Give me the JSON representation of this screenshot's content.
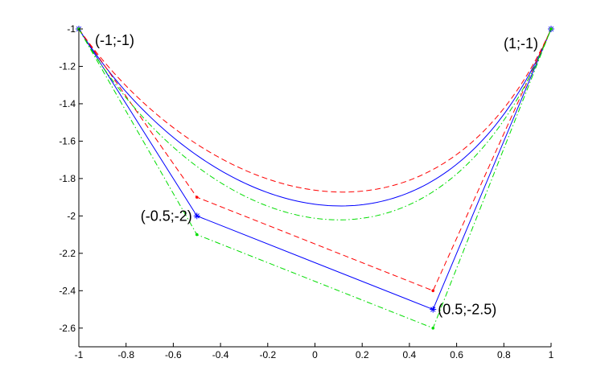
{
  "chart_data": {
    "type": "line",
    "title": "",
    "xlabel": "",
    "ylabel": "",
    "xlim": [
      -1,
      1
    ],
    "ylim": [
      -2.7,
      -1
    ],
    "grid": false,
    "legend": "none",
    "xticks": [
      -1,
      -0.8,
      -0.6,
      -0.4,
      -0.2,
      0,
      0.2,
      0.4,
      0.6,
      0.8,
      1
    ],
    "xtick_labels": [
      "-1",
      "-0.8",
      "-0.6",
      "-0.4",
      "-0.2",
      "0",
      "0.2",
      "0.4",
      "0.6",
      "0.8",
      "1"
    ],
    "yticks": [
      -1,
      -1.2,
      -1.4,
      -1.6,
      -1.8,
      -2,
      -2.2,
      -2.4,
      -2.6
    ],
    "ytick_labels": [
      "-1",
      "-1.2",
      "-1.4",
      "-1.6",
      "-1.8",
      "-2",
      "-2.2",
      "-2.4",
      "-2.6"
    ],
    "series": [
      {
        "kind": "control-polygon",
        "color": "#0000ff",
        "style": "solid",
        "marker": "star",
        "x": [
          -1,
          -0.5,
          0.5,
          1
        ],
        "y": [
          -1,
          -2,
          -2.5,
          -1
        ]
      },
      {
        "kind": "bezier-curve",
        "color": "#0000ff",
        "style": "solid",
        "marker": "none",
        "control_x": [
          -1,
          -0.5,
          0.5,
          1
        ],
        "control_y": [
          -1,
          -2,
          -2.5,
          -1
        ]
      },
      {
        "kind": "control-polygon",
        "color": "#ff0000",
        "style": "dashed",
        "marker": "dot",
        "x": [
          -1,
          -0.5,
          0.5,
          1
        ],
        "y": [
          -1,
          -1.9,
          -2.4,
          -1
        ]
      },
      {
        "kind": "bezier-curve",
        "color": "#ff0000",
        "style": "dashed",
        "marker": "none",
        "control_x": [
          -1,
          -0.5,
          0.5,
          1
        ],
        "control_y": [
          -1,
          -1.9,
          -2.4,
          -1
        ]
      },
      {
        "kind": "control-polygon",
        "color": "#00dd00",
        "style": "dashdot",
        "marker": "dot",
        "x": [
          -1,
          -0.5,
          0.5,
          1
        ],
        "y": [
          -1,
          -2.1,
          -2.6,
          -1
        ]
      },
      {
        "kind": "bezier-curve",
        "color": "#00dd00",
        "style": "dashdot",
        "marker": "none",
        "control_x": [
          -1,
          -0.5,
          0.5,
          1
        ],
        "control_y": [
          -1,
          -2.1,
          -2.6,
          -1
        ]
      }
    ],
    "annotations": [
      {
        "text": "(-1;-1)",
        "x": -1,
        "y": -1,
        "placement": "right"
      },
      {
        "text": "(1;-1)",
        "x": 1,
        "y": -1,
        "placement": "left"
      },
      {
        "text": "(-0.5;-2)",
        "x": -0.5,
        "y": -2,
        "placement": "left"
      },
      {
        "text": "(0.5;-2.5)",
        "x": 0.5,
        "y": -2.5,
        "placement": "right"
      }
    ],
    "colors": {
      "axis": "#000000",
      "background": "#ffffff"
    }
  }
}
